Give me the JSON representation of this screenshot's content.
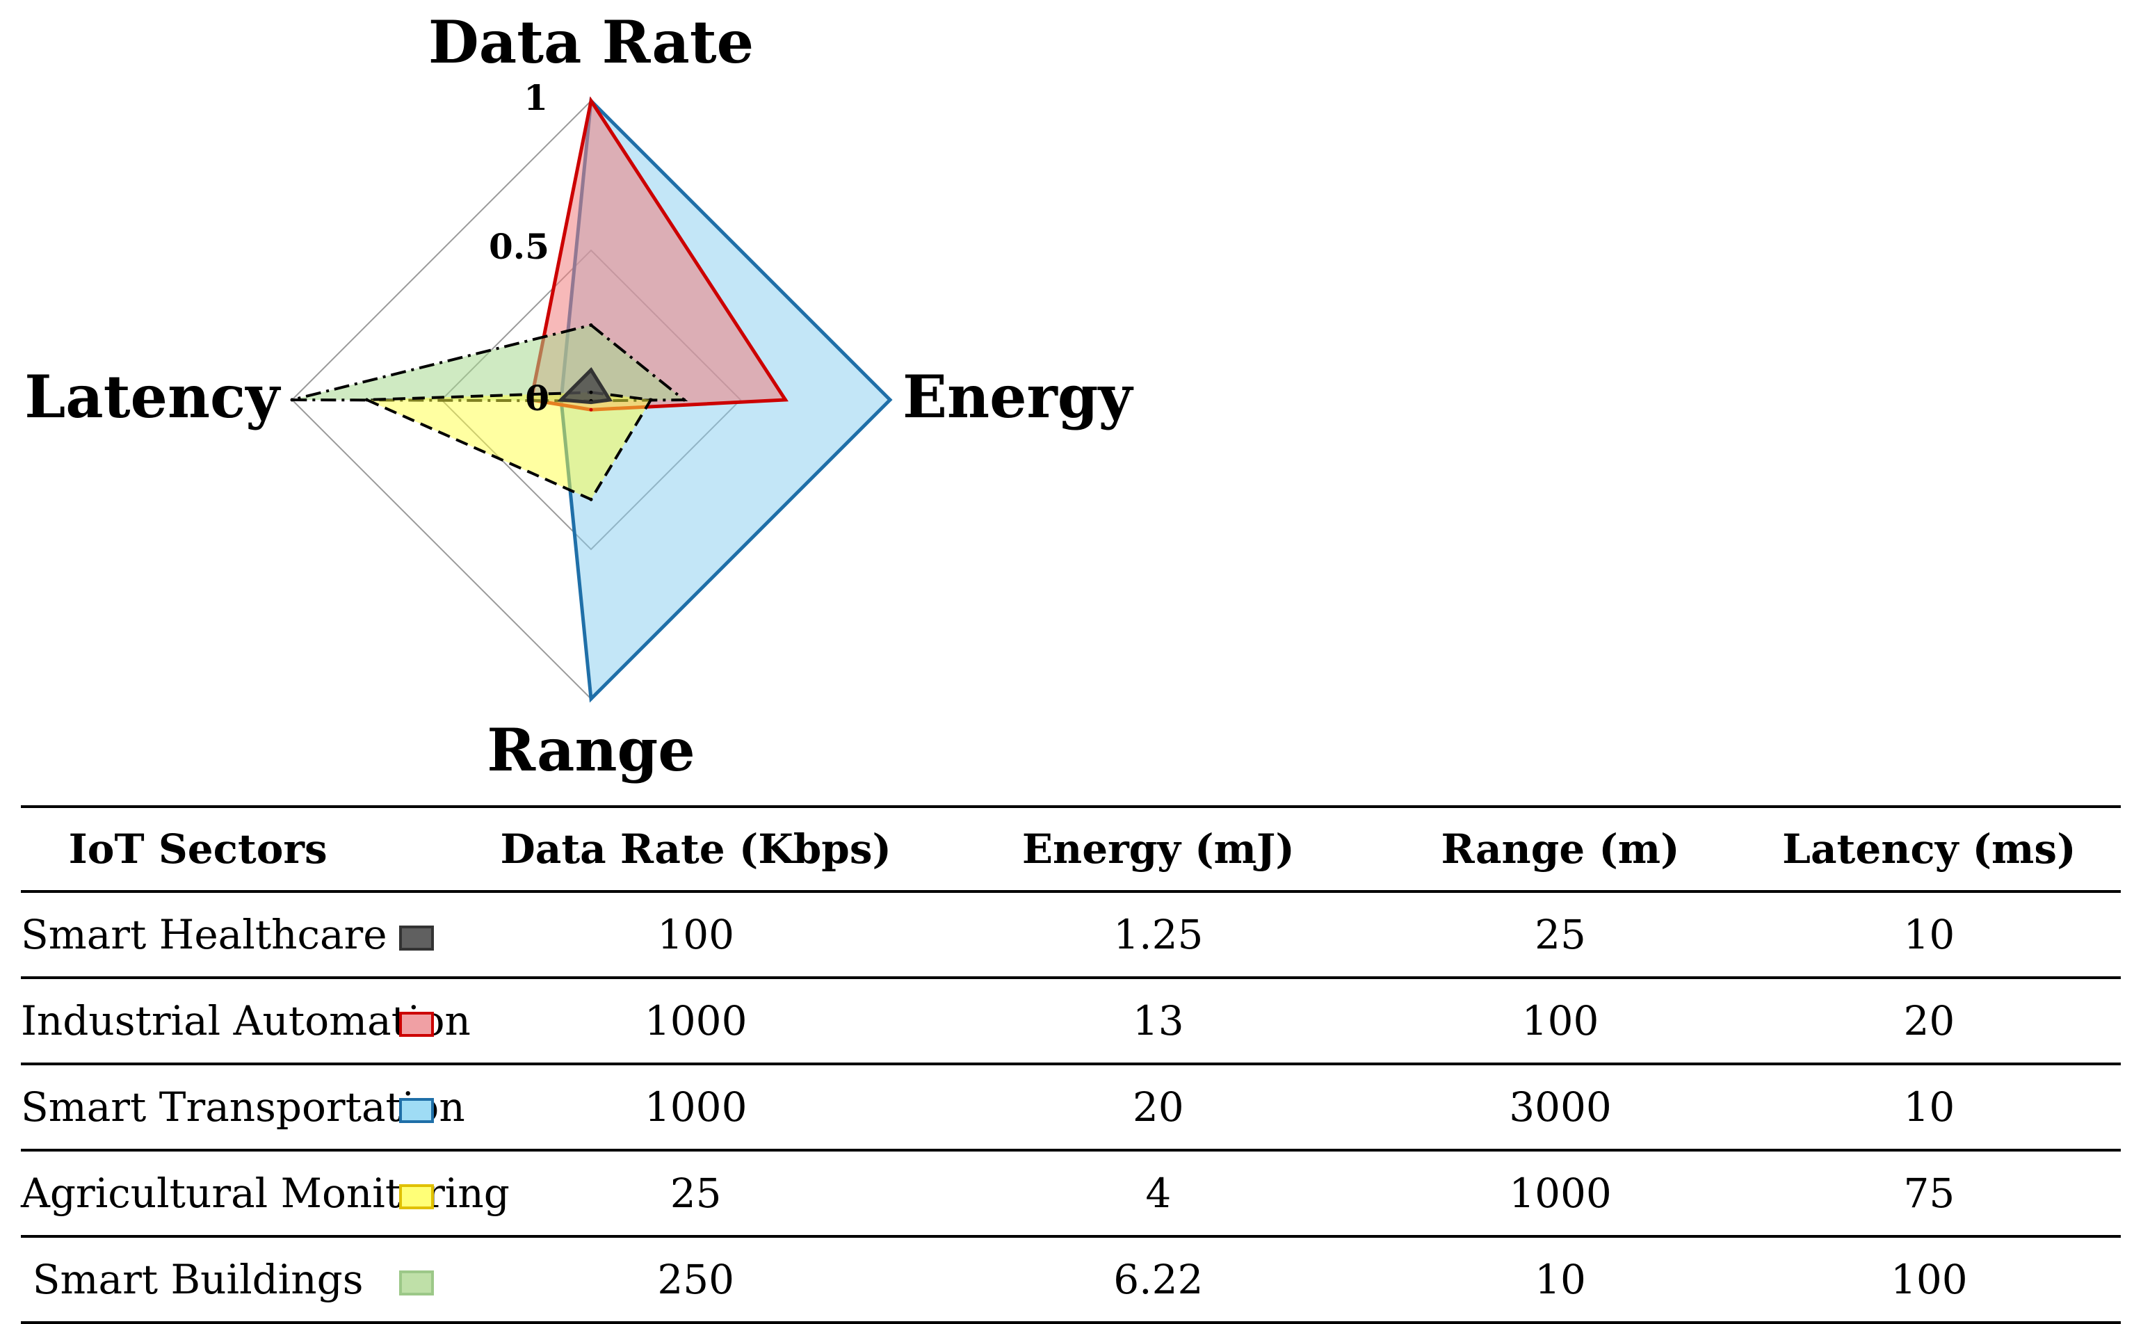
{
  "chart_data": {
    "type": "radar",
    "axes": [
      "Data Rate",
      "Energy",
      "Range",
      "Latency"
    ],
    "axis_max_raw": {
      "Data Rate": 1000,
      "Energy": 20,
      "Range": 3000,
      "Latency": 100
    },
    "rlim": [
      0,
      1
    ],
    "ticks": [
      "0",
      "0.5",
      "1"
    ],
    "series": [
      {
        "name": "Smart Healthcare",
        "color": "#4d4d4d",
        "edge": "#333333",
        "opacity": 0.85,
        "dash": "solid",
        "values": [
          0.1,
          0.0625,
          0.0083,
          0.1
        ]
      },
      {
        "name": "Industrial Automation",
        "color": "#f08080",
        "edge": "#cc0000",
        "opacity": 0.55,
        "dash": "solid",
        "values": [
          1.0,
          0.65,
          0.033,
          0.2
        ]
      },
      {
        "name": "Smart Transportation",
        "color": "#87cef0",
        "edge": "#1f6fa8",
        "opacity": 0.5,
        "dash": "solid",
        "values": [
          1.0,
          1.0,
          1.0,
          0.1
        ]
      },
      {
        "name": "Agricultural Monitoring",
        "color": "#ffff44",
        "edge": "#000000",
        "opacity": 0.5,
        "dash": "dashed",
        "values": [
          0.025,
          0.2,
          0.333,
          0.75
        ]
      },
      {
        "name": "Smart Buildings",
        "color": "#a8d890",
        "edge": "#000000",
        "opacity": 0.55,
        "dash": "dashdot",
        "values": [
          0.25,
          0.311,
          0.0033,
          1.0
        ]
      }
    ]
  },
  "table": {
    "headers": [
      "IoT Sectors",
      "",
      "Data Rate (Kbps)",
      "Energy (mJ)",
      "Range (m)",
      "Latency (ms)"
    ],
    "rows": [
      {
        "sector": "Smart Healthcare",
        "swatch_fill": "#606060",
        "swatch_border": "#333333",
        "data_rate": "100",
        "energy": "1.25",
        "range": "25",
        "latency": "10"
      },
      {
        "sector": "Industrial Automation",
        "swatch_fill": "#f0a0a4",
        "swatch_border": "#cc0000",
        "data_rate": "1000",
        "energy": "13",
        "range": "100",
        "latency": "20"
      },
      {
        "sector": "Smart Transportation",
        "swatch_fill": "#9fdcf5",
        "swatch_border": "#1f6fa8",
        "data_rate": "1000",
        "energy": "20",
        "range": "3000",
        "latency": "10"
      },
      {
        "sector": "Agricultural Monitoring",
        "swatch_fill": "#ffff77",
        "swatch_border": "#e0c000",
        "data_rate": "25",
        "energy": "4",
        "range": "1000",
        "latency": "75"
      },
      {
        "sector": "Smart Buildings",
        "swatch_fill": "#bfe0a8",
        "swatch_border": "#9cc888",
        "data_rate": "250",
        "energy": "6.22",
        "range": "10",
        "latency": "100"
      }
    ]
  }
}
